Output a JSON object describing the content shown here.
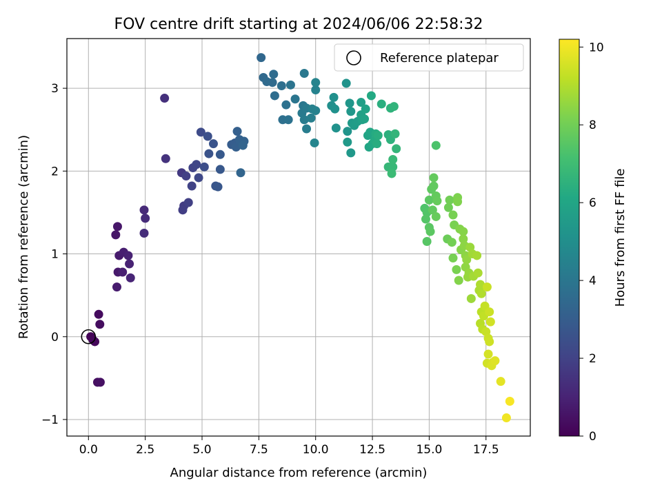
{
  "chart_data": {
    "type": "scatter",
    "title": "FOV centre drift starting at 2024/06/06 22:58:32",
    "xlabel": "Angular distance from reference (arcmin)",
    "ylabel": "Rotation from reference (arcmin)",
    "xlim": [
      -0.95,
      19.45
    ],
    "ylim": [
      -1.2,
      3.6
    ],
    "xticks": [
      0.0,
      2.5,
      5.0,
      7.5,
      10.0,
      12.5,
      15.0,
      17.5
    ],
    "xtick_labels": [
      "0.0",
      "2.5",
      "5.0",
      "7.5",
      "10.0",
      "12.5",
      "15.0",
      "17.5"
    ],
    "yticks": [
      -1,
      0,
      1,
      2,
      3
    ],
    "ytick_labels": [
      "−1",
      "0",
      "1",
      "2",
      "3"
    ],
    "grid": true,
    "legend": {
      "position": "top-right",
      "entries": [
        "Reference platepar"
      ]
    },
    "reference_point": {
      "x": 0.0,
      "y": 0.0,
      "label": "Reference platepar"
    },
    "colorbar": {
      "label": "Hours from first FF file",
      "colormap": "viridis",
      "range": [
        0,
        10.2
      ],
      "ticks": [
        0,
        2,
        4,
        6,
        8,
        10
      ],
      "tick_labels": [
        "0",
        "2",
        "4",
        "6",
        "8",
        "10"
      ]
    },
    "points": [
      [
        0.1,
        0.0,
        0.1
      ],
      [
        0.2,
        -0.04,
        0.15
      ],
      [
        0.28,
        -0.06,
        0.2
      ],
      [
        0.45,
        0.27,
        0.3
      ],
      [
        0.5,
        0.15,
        0.35
      ],
      [
        0.4,
        -0.55,
        0.4
      ],
      [
        0.52,
        -0.55,
        0.45
      ],
      [
        1.2,
        1.23,
        0.6
      ],
      [
        1.28,
        1.33,
        0.65
      ],
      [
        1.3,
        0.78,
        0.7
      ],
      [
        1.35,
        0.98,
        0.75
      ],
      [
        1.25,
        0.6,
        0.8
      ],
      [
        1.55,
        1.02,
        0.85
      ],
      [
        1.5,
        0.78,
        0.9
      ],
      [
        1.75,
        0.98,
        0.95
      ],
      [
        1.8,
        0.88,
        1.0
      ],
      [
        1.85,
        0.71,
        1.05
      ],
      [
        2.45,
        1.53,
        1.2
      ],
      [
        2.5,
        1.43,
        1.25
      ],
      [
        2.45,
        1.25,
        1.3
      ],
      [
        3.35,
        2.88,
        1.4
      ],
      [
        3.4,
        2.15,
        1.5
      ],
      [
        4.1,
        1.98,
        1.7
      ],
      [
        4.2,
        1.58,
        1.8
      ],
      [
        4.15,
        1.53,
        1.85
      ],
      [
        4.3,
        1.94,
        1.9
      ],
      [
        4.4,
        1.62,
        1.95
      ],
      [
        4.55,
        1.82,
        2.0
      ],
      [
        4.6,
        2.04,
        2.05
      ],
      [
        4.75,
        2.08,
        2.1
      ],
      [
        4.85,
        1.92,
        2.2
      ],
      [
        4.95,
        2.47,
        2.3
      ],
      [
        5.1,
        2.05,
        2.4
      ],
      [
        5.25,
        2.42,
        2.5
      ],
      [
        5.3,
        2.21,
        2.6
      ],
      [
        5.5,
        2.33,
        2.65
      ],
      [
        5.6,
        1.82,
        2.7
      ],
      [
        5.7,
        1.81,
        2.75
      ],
      [
        5.8,
        2.02,
        2.8
      ],
      [
        5.8,
        2.2,
        2.85
      ],
      [
        6.3,
        2.32,
        2.95
      ],
      [
        6.45,
        2.34,
        3.0
      ],
      [
        6.5,
        2.29,
        3.05
      ],
      [
        6.55,
        2.48,
        3.1
      ],
      [
        6.65,
        2.38,
        3.15
      ],
      [
        6.85,
        2.36,
        3.2
      ],
      [
        6.8,
        2.31,
        3.25
      ],
      [
        6.7,
        1.98,
        3.3
      ],
      [
        7.6,
        3.37,
        3.4
      ],
      [
        7.7,
        3.13,
        3.45
      ],
      [
        7.85,
        3.08,
        3.5
      ],
      [
        8.1,
        3.07,
        3.55
      ],
      [
        8.15,
        3.17,
        3.6
      ],
      [
        8.2,
        2.91,
        3.65
      ],
      [
        8.5,
        3.03,
        3.7
      ],
      [
        8.55,
        2.62,
        3.75
      ],
      [
        8.7,
        2.8,
        3.8
      ],
      [
        8.8,
        2.62,
        3.85
      ],
      [
        8.9,
        3.04,
        3.9
      ],
      [
        9.1,
        2.87,
        3.95
      ],
      [
        9.45,
        2.79,
        4.05
      ],
      [
        9.5,
        3.18,
        4.1
      ],
      [
        9.4,
        2.7,
        4.15
      ],
      [
        9.6,
        2.76,
        4.2
      ],
      [
        9.5,
        2.62,
        4.25
      ],
      [
        9.6,
        2.51,
        4.3
      ],
      [
        9.8,
        2.64,
        4.35
      ],
      [
        9.85,
        2.75,
        4.4
      ],
      [
        10.0,
        2.73,
        4.45
      ],
      [
        10.0,
        2.98,
        4.5
      ],
      [
        10.0,
        3.07,
        4.55
      ],
      [
        9.95,
        2.34,
        4.6
      ],
      [
        10.7,
        2.79,
        5.0
      ],
      [
        10.8,
        2.89,
        5.05
      ],
      [
        10.85,
        2.75,
        5.1
      ],
      [
        10.9,
        2.52,
        5.15
      ],
      [
        11.35,
        3.06,
        5.2
      ],
      [
        11.4,
        2.48,
        5.25
      ],
      [
        11.5,
        2.82,
        5.3
      ],
      [
        11.55,
        2.72,
        5.35
      ],
      [
        11.55,
        2.22,
        5.4
      ],
      [
        11.4,
        2.35,
        5.45
      ],
      [
        11.6,
        2.58,
        5.5
      ],
      [
        11.7,
        2.55,
        5.55
      ],
      [
        11.75,
        2.58,
        5.6
      ],
      [
        11.85,
        2.6,
        5.65
      ],
      [
        12.0,
        2.83,
        5.7
      ],
      [
        12.0,
        2.68,
        5.75
      ],
      [
        12.05,
        2.62,
        5.8
      ],
      [
        12.15,
        2.63,
        5.85
      ],
      [
        12.2,
        2.75,
        5.9
      ],
      [
        12.3,
        2.43,
        5.95
      ],
      [
        12.35,
        2.29,
        6.0
      ],
      [
        12.4,
        2.47,
        6.05
      ],
      [
        12.5,
        2.33,
        6.1
      ],
      [
        12.45,
        2.91,
        6.15
      ],
      [
        12.6,
        2.37,
        6.2
      ],
      [
        12.65,
        2.45,
        6.25
      ],
      [
        12.7,
        2.33,
        6.3
      ],
      [
        12.75,
        2.43,
        6.35
      ],
      [
        12.9,
        2.81,
        6.4
      ],
      [
        13.2,
        2.44,
        6.45
      ],
      [
        13.3,
        2.38,
        6.5
      ],
      [
        13.3,
        2.76,
        6.55
      ],
      [
        13.45,
        2.78,
        6.6
      ],
      [
        13.5,
        2.45,
        6.65
      ],
      [
        13.55,
        2.27,
        6.7
      ],
      [
        13.2,
        2.05,
        6.75
      ],
      [
        13.4,
        2.05,
        6.8
      ],
      [
        13.4,
        2.14,
        6.85
      ],
      [
        13.35,
        1.97,
        6.9
      ],
      [
        15.3,
        2.31,
        7.3
      ],
      [
        14.8,
        1.55,
        7.35
      ],
      [
        14.9,
        1.5,
        7.4
      ],
      [
        14.85,
        1.42,
        7.45
      ],
      [
        14.9,
        1.15,
        7.5
      ],
      [
        15.0,
        1.32,
        7.55
      ],
      [
        15.05,
        1.27,
        7.6
      ],
      [
        15.0,
        1.65,
        7.6
      ],
      [
        15.1,
        1.78,
        7.65
      ],
      [
        15.15,
        1.53,
        7.7
      ],
      [
        15.2,
        1.82,
        7.7
      ],
      [
        15.2,
        1.92,
        7.75
      ],
      [
        15.3,
        1.7,
        7.75
      ],
      [
        15.35,
        1.64,
        7.8
      ],
      [
        15.3,
        1.45,
        7.8
      ],
      [
        15.8,
        1.18,
        7.9
      ],
      [
        15.85,
        1.56,
        7.95
      ],
      [
        15.9,
        1.65,
        8.0
      ],
      [
        16.0,
        1.14,
        8.05
      ],
      [
        16.05,
        0.95,
        8.1
      ],
      [
        16.05,
        1.47,
        8.1
      ],
      [
        16.1,
        1.35,
        8.15
      ],
      [
        16.2,
        0.81,
        8.15
      ],
      [
        16.25,
        1.68,
        8.2
      ],
      [
        16.25,
        1.63,
        8.25
      ],
      [
        16.3,
        0.68,
        8.3
      ],
      [
        16.35,
        1.3,
        8.3
      ],
      [
        16.4,
        1.05,
        8.35
      ],
      [
        16.5,
        1.27,
        8.35
      ],
      [
        16.5,
        1.18,
        8.4
      ],
      [
        16.55,
        1.1,
        8.45
      ],
      [
        16.6,
        0.98,
        8.45
      ],
      [
        16.6,
        0.84,
        8.5
      ],
      [
        16.65,
        0.93,
        8.55
      ],
      [
        16.7,
        0.72,
        8.6
      ],
      [
        16.75,
        0.77,
        8.6
      ],
      [
        16.8,
        1.08,
        8.65
      ],
      [
        16.85,
        0.46,
        8.7
      ],
      [
        16.9,
        1.0,
        8.75
      ],
      [
        16.95,
        0.73,
        8.8
      ],
      [
        17.1,
        0.98,
        8.85
      ],
      [
        17.15,
        0.77,
        8.9
      ],
      [
        17.2,
        0.56,
        8.9
      ],
      [
        17.25,
        0.63,
        8.95
      ],
      [
        17.3,
        0.52,
        9.0
      ],
      [
        17.25,
        0.16,
        9.1
      ],
      [
        17.3,
        0.3,
        9.15
      ],
      [
        17.35,
        0.09,
        9.2
      ],
      [
        17.4,
        0.25,
        9.25
      ],
      [
        17.45,
        0.37,
        9.3
      ],
      [
        17.5,
        0.06,
        9.35
      ],
      [
        17.55,
        0.6,
        9.35
      ],
      [
        17.6,
        -0.02,
        9.4
      ],
      [
        17.65,
        0.3,
        9.4
      ],
      [
        17.65,
        -0.06,
        9.45
      ],
      [
        17.7,
        0.18,
        9.5
      ],
      [
        17.55,
        -0.32,
        9.5
      ],
      [
        17.6,
        -0.21,
        9.55
      ],
      [
        17.8,
        -0.31,
        9.6
      ],
      [
        17.75,
        -0.35,
        9.65
      ],
      [
        17.9,
        -0.29,
        9.7
      ],
      [
        18.15,
        -0.54,
        9.8
      ],
      [
        18.4,
        -0.98,
        10.0
      ],
      [
        18.55,
        -0.78,
        10.1
      ]
    ]
  }
}
